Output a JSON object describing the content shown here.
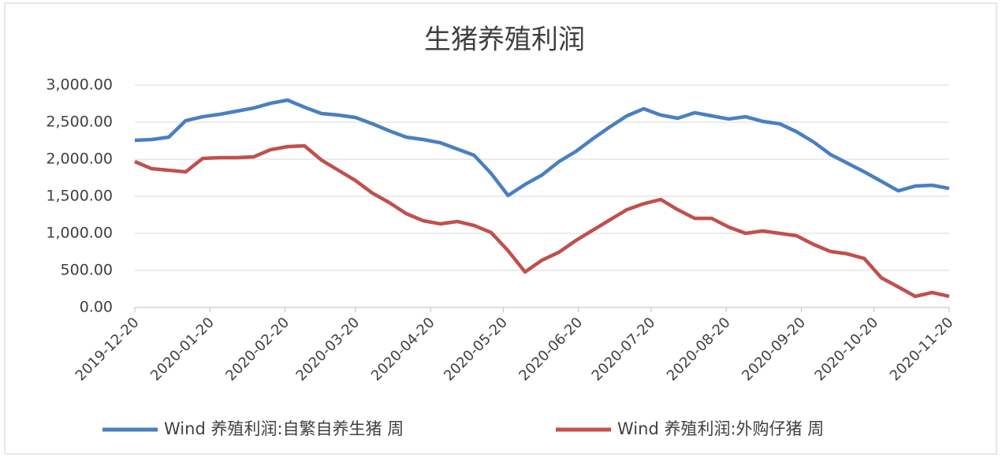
{
  "chart_data": {
    "type": "line",
    "title": "生猪养殖利润",
    "x": [
      "2019-12-20",
      "2019-12-27",
      "2020-01-03",
      "2020-01-10",
      "2020-01-17",
      "2020-01-24",
      "2020-01-31",
      "2020-02-07",
      "2020-02-14",
      "2020-02-21",
      "2020-02-28",
      "2020-03-06",
      "2020-03-13",
      "2020-03-20",
      "2020-03-27",
      "2020-04-03",
      "2020-04-10",
      "2020-04-17",
      "2020-04-24",
      "2020-05-01",
      "2020-05-08",
      "2020-05-15",
      "2020-05-22",
      "2020-05-29",
      "2020-06-05",
      "2020-06-12",
      "2020-06-19",
      "2020-06-26",
      "2020-07-03",
      "2020-07-10",
      "2020-07-17",
      "2020-07-24",
      "2020-07-31",
      "2020-08-07",
      "2020-08-14",
      "2020-08-21",
      "2020-08-28",
      "2020-09-04",
      "2020-09-11",
      "2020-09-18",
      "2020-09-25",
      "2020-10-02",
      "2020-10-09",
      "2020-10-16",
      "2020-10-23",
      "2020-10-30",
      "2020-11-06",
      "2020-11-13",
      "2020-11-20"
    ],
    "series": [
      {
        "name": "Wind 养殖利润:自繁自养生猪 周",
        "color": "#4a7fc1",
        "values": [
          2255,
          2266,
          2298,
          2521,
          2574,
          2606,
          2649,
          2691,
          2755,
          2798,
          2702,
          2617,
          2596,
          2564,
          2479,
          2383,
          2298,
          2266,
          2223,
          2138,
          2053,
          1809,
          1511,
          1660,
          1787,
          1968,
          2106,
          2277,
          2436,
          2585,
          2681,
          2596,
          2553,
          2628,
          2585,
          2543,
          2574,
          2511,
          2479,
          2372,
          2234,
          2064,
          1947,
          1830,
          1702,
          1574,
          1638,
          1649,
          1606
        ]
      },
      {
        "name": "Wind 养殖利润:外购仔猪 周",
        "color": "#c0504d",
        "values": [
          1968,
          1872,
          1851,
          1830,
          2011,
          2021,
          2021,
          2032,
          2128,
          2170,
          2181,
          1989,
          1851,
          1713,
          1543,
          1415,
          1266,
          1170,
          1128,
          1160,
          1106,
          1011,
          766,
          479,
          638,
          745,
          904,
          1043,
          1181,
          1319,
          1400,
          1457,
          1319,
          1202,
          1202,
          1085,
          1000,
          1032,
          1000,
          968,
          851,
          755,
          723,
          660,
          400,
          277,
          149,
          202,
          149
        ]
      }
    ],
    "ylim": [
      0,
      3000
    ],
    "yticks": [
      {
        "value": 0,
        "label": "0.00"
      },
      {
        "value": 500,
        "label": "500.00"
      },
      {
        "value": 1000,
        "label": "1,000.00"
      },
      {
        "value": 1500,
        "label": "1,500.00"
      },
      {
        "value": 2000,
        "label": "2,000.00"
      },
      {
        "value": 2500,
        "label": "2,500.00"
      },
      {
        "value": 3000,
        "label": "3,000.00"
      }
    ],
    "xlim": [
      "2019-12-20",
      "2020-11-20"
    ],
    "xticks": [
      "2019-12-20",
      "2020-01-20",
      "2020-02-20",
      "2020-03-20",
      "2020-04-20",
      "2020-05-20",
      "2020-06-20",
      "2020-07-20",
      "2020-08-20",
      "2020-09-20",
      "2020-10-20",
      "2020-11-20"
    ],
    "grid": true,
    "legend": "bottom"
  }
}
